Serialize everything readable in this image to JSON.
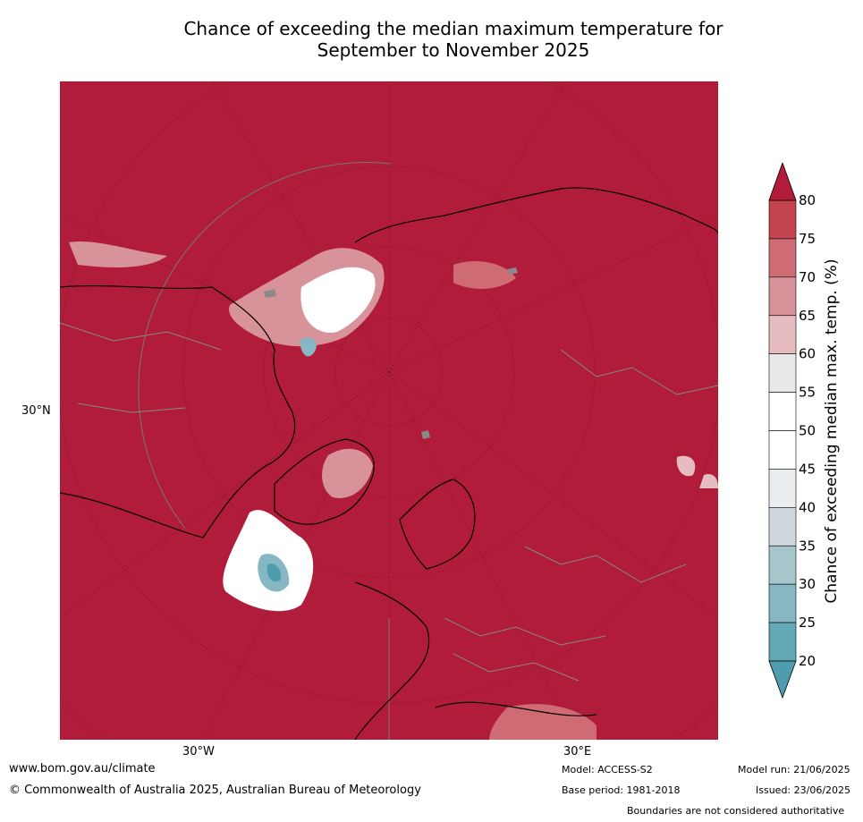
{
  "title": {
    "line1": "Chance of exceeding the median maximum temperature for",
    "line2": "September to November 2025"
  },
  "map": {
    "lat_label": "30°N",
    "lon_labels": [
      "30°W",
      "30°E"
    ],
    "base_color": "#b01c3a"
  },
  "colorbar": {
    "label": "Chance of exceeding median max. temp. (%)",
    "ticks": [
      "80",
      "75",
      "70",
      "65",
      "60",
      "55",
      "50",
      "45",
      "40",
      "35",
      "30",
      "25",
      "20"
    ],
    "colors": [
      "#b01c3a",
      "#c1444f",
      "#cf6b73",
      "#d8929a",
      "#e6bcc0",
      "#e9e9e9",
      "#ffffff",
      "#ffffff",
      "#e9edf0",
      "#cfd8dc",
      "#a6c6cc",
      "#86b7c2",
      "#62a8b6",
      "#4e9daf"
    ]
  },
  "footer": {
    "url": "www.bom.gov.au/climate",
    "copyright": "© Commonwealth of Australia 2025, Australian Bureau of Meteorology",
    "model": "Model: ACCESS-S2",
    "base_period": "Base period: 1981-2018",
    "model_run": "Model run: 21/06/2025",
    "issued": "Issued: 23/06/2025",
    "disclaimer": "Boundaries are not considered authoritative"
  }
}
